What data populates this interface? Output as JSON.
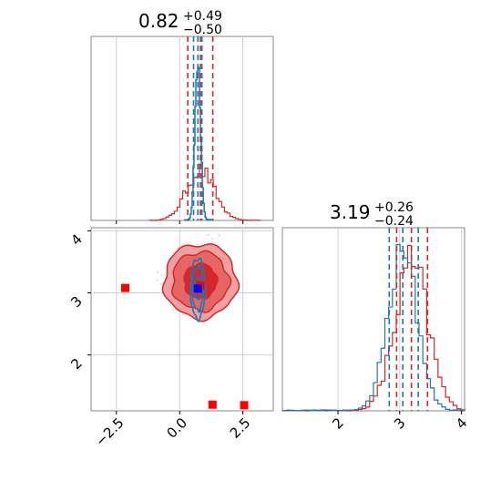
{
  "chart_data": {
    "type": "corner",
    "colors": {
      "red": "#d62728",
      "blue": "#1f77b4",
      "red_marker": "#ff0000",
      "blue_marker": "#0000ff"
    },
    "panels": [
      {
        "name": "param-1-marginal",
        "type": "histogram",
        "title": {
          "main": "0.82",
          "sup": "+0.49",
          "sub": "−0.50"
        },
        "xlim": [
          -3.5,
          3.7
        ],
        "red_quantiles": [
          0.32,
          0.82,
          1.31
        ],
        "blue_quantiles": [
          0.55,
          0.72,
          0.88
        ]
      },
      {
        "name": "param-2-marginal",
        "type": "histogram",
        "title": {
          "main": "3.19",
          "sup": "+0.26",
          "sub": "−0.24"
        },
        "xlim": [
          1.1,
          4.05
        ],
        "xticks": [
          2,
          3,
          4
        ],
        "xtick_labels": [
          "2",
          "3",
          "4"
        ],
        "red_quantiles": [
          2.95,
          3.19,
          3.45
        ],
        "blue_quantiles": [
          2.83,
          3.05,
          3.3
        ]
      },
      {
        "name": "joint",
        "type": "contour",
        "xlim": [
          -3.5,
          3.7
        ],
        "ylim": [
          1.1,
          4.05
        ],
        "xticks": [
          -2.5,
          0.0,
          2.5
        ],
        "xtick_labels": [
          "−2.5",
          "0.0",
          "2.5"
        ],
        "yticks": [
          2,
          3,
          4
        ],
        "ytick_labels": [
          "2",
          "3",
          "4"
        ],
        "red_markers": [
          [
            -2.15,
            3.08
          ],
          [
            1.3,
            1.2
          ],
          [
            2.55,
            1.19
          ],
          [
            0.82,
            3.12
          ]
        ],
        "blue_marker": [
          0.72,
          3.07
        ]
      }
    ]
  }
}
